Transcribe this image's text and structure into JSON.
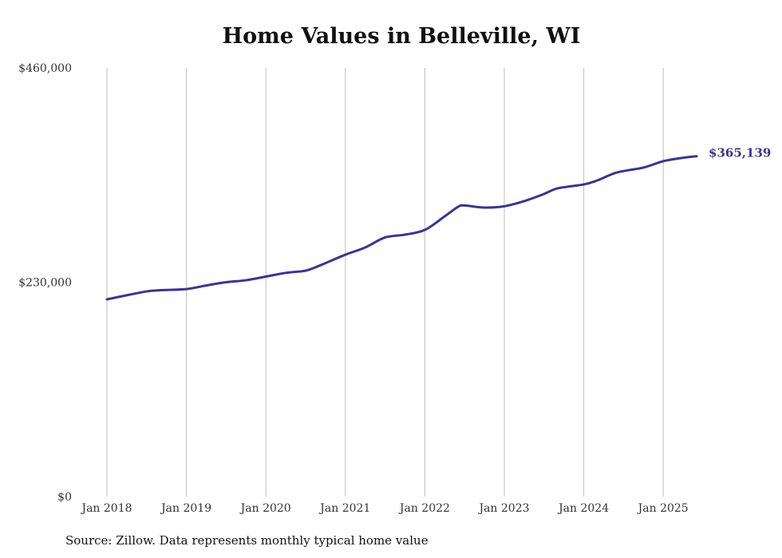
{
  "chart_data": {
    "type": "line",
    "title": "Home Values in Belleville, WI",
    "xlabel": "",
    "ylabel": "",
    "source": "Source: Zillow. Data represents monthly typical home value",
    "ylim": [
      0,
      460000
    ],
    "y_ticks": [
      {
        "value": 0,
        "label": "$0"
      },
      {
        "value": 230000,
        "label": "$230,000"
      },
      {
        "value": 460000,
        "label": "$460,000"
      }
    ],
    "x_ticks": [
      {
        "value": 2018,
        "label": "Jan 2018"
      },
      {
        "value": 2019,
        "label": "Jan 2019"
      },
      {
        "value": 2020,
        "label": "Jan 2020"
      },
      {
        "value": 2021,
        "label": "Jan 2021"
      },
      {
        "value": 2022,
        "label": "Jan 2022"
      },
      {
        "value": 2023,
        "label": "Jan 2023"
      },
      {
        "value": 2024,
        "label": "Jan 2024"
      },
      {
        "value": 2025,
        "label": "Jan 2025"
      }
    ],
    "grid": "vertical",
    "series": [
      {
        "name": "Home value",
        "color": "#3a3396",
        "x": [
          2018.0,
          2018.25,
          2018.5,
          2018.67,
          2019.0,
          2019.25,
          2019.5,
          2019.75,
          2020.0,
          2020.25,
          2020.5,
          2020.67,
          2021.0,
          2021.25,
          2021.5,
          2021.75,
          2022.0,
          2022.25,
          2022.42,
          2022.5,
          2022.75,
          2023.0,
          2023.25,
          2023.5,
          2023.67,
          2024.0,
          2024.17,
          2024.42,
          2024.75,
          2025.0,
          2025.25,
          2025.42
        ],
        "y": [
          211600,
          216000,
          220100,
          221400,
          222600,
          226500,
          230000,
          232100,
          236000,
          240000,
          242400,
          247600,
          259500,
          267300,
          278000,
          281000,
          286100,
          300700,
          311000,
          312300,
          310100,
          311500,
          317000,
          324700,
          330700,
          334900,
          339200,
          347800,
          353000,
          359800,
          363500,
          365139
        ]
      }
    ],
    "end_label": "$365,139"
  }
}
